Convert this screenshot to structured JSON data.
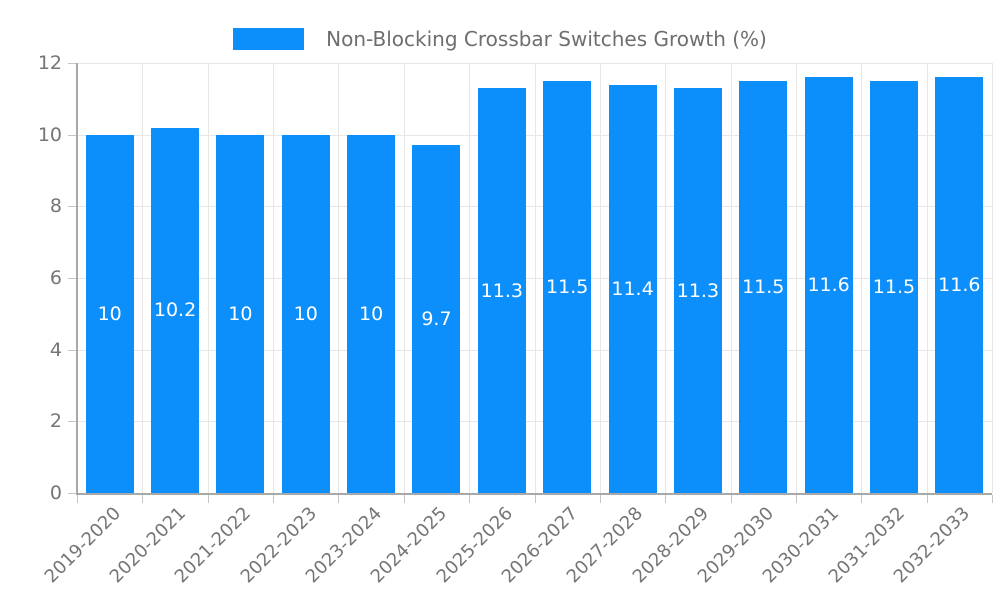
{
  "legend": {
    "label": "Non-Blocking Crossbar Switches Growth (%)"
  },
  "chart_data": {
    "type": "bar",
    "title": "Non-Blocking Crossbar Switches Growth (%)",
    "categories": [
      "2019-2020",
      "2020-2021",
      "2021-2022",
      "2022-2023",
      "2023-2024",
      "2024-2025",
      "2025-2026",
      "2026-2027",
      "2027-2028",
      "2028-2029",
      "2029-2030",
      "2030-2031",
      "2031-2032",
      "2032-2033"
    ],
    "values": [
      10,
      10.2,
      10,
      10,
      10,
      9.7,
      11.3,
      11.5,
      11.4,
      11.3,
      11.5,
      11.6,
      11.5,
      11.6
    ],
    "bar_labels": [
      "10",
      "10.2",
      "10",
      "10",
      "10",
      "9.7",
      "11.3",
      "11.5",
      "11.4",
      "11.3",
      "11.5",
      "11.6",
      "11.5",
      "11.6"
    ],
    "xlabel": "",
    "ylabel": "",
    "yticks": [
      0,
      2,
      4,
      6,
      8,
      10,
      12
    ],
    "ylim": [
      0,
      12
    ],
    "grid": true,
    "legend_position": "top",
    "xlabel_rotation_deg": -45,
    "colors": {
      "bar": "#0D8FFB",
      "label_text": "#FFFFFF",
      "axis_text": "#757575",
      "legend_text": "#6E6E6E",
      "grid_line": "#E7E7E7",
      "axis_line": "#A8A8A8",
      "tick_line": "#C4C4C4",
      "background": "#FFFFFF"
    }
  }
}
